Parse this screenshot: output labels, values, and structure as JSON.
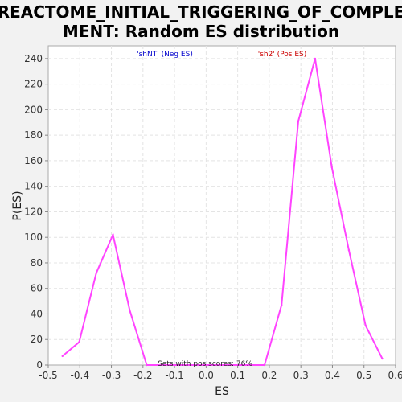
{
  "chart_data": {
    "type": "line",
    "title_lines": [
      "REACTOME_INITIAL_TRIGGERING_OF_COMPLE",
      "MENT: Random ES distribution"
    ],
    "xlabel": "ES",
    "ylabel": "P(ES)",
    "xlim": [
      -0.5,
      0.6
    ],
    "ylim": [
      0,
      250
    ],
    "x_ticks": [
      -0.5,
      -0.4,
      -0.3,
      -0.2,
      -0.1,
      0.0,
      0.1,
      0.2,
      0.3,
      0.4,
      0.5,
      0.6
    ],
    "x_tick_labels": [
      "-0.5",
      "-0.4",
      "-0.3",
      "-0.2",
      "-0.1",
      "0.0",
      "0.1",
      "0.2",
      "0.3",
      "0.4",
      "0.5",
      "0.6"
    ],
    "y_ticks": [
      0,
      20,
      40,
      60,
      80,
      100,
      120,
      140,
      160,
      180,
      200,
      220,
      240
    ],
    "y_tick_labels": [
      "0",
      "20",
      "40",
      "60",
      "80",
      "100",
      "120",
      "140",
      "160",
      "180",
      "200",
      "220",
      "240"
    ],
    "grid": true,
    "legend": [
      {
        "label": "'shNT' (Neg ES)",
        "color": "#0000cc"
      },
      {
        "label": "'sh2' (Pos ES)",
        "color": "#cc0000"
      }
    ],
    "annotation": "Sets with pos scores: 76%",
    "series": [
      {
        "color": "#ff44ff",
        "x": [
          -0.455,
          -0.402,
          -0.348,
          -0.295,
          -0.242,
          -0.188,
          0.185,
          0.239,
          0.292,
          0.345,
          0.398,
          0.452,
          0.505,
          0.558
        ],
        "y": [
          7,
          18,
          72,
          102,
          43,
          0,
          0,
          47,
          191,
          240,
          155,
          90,
          31,
          5
        ]
      }
    ]
  }
}
